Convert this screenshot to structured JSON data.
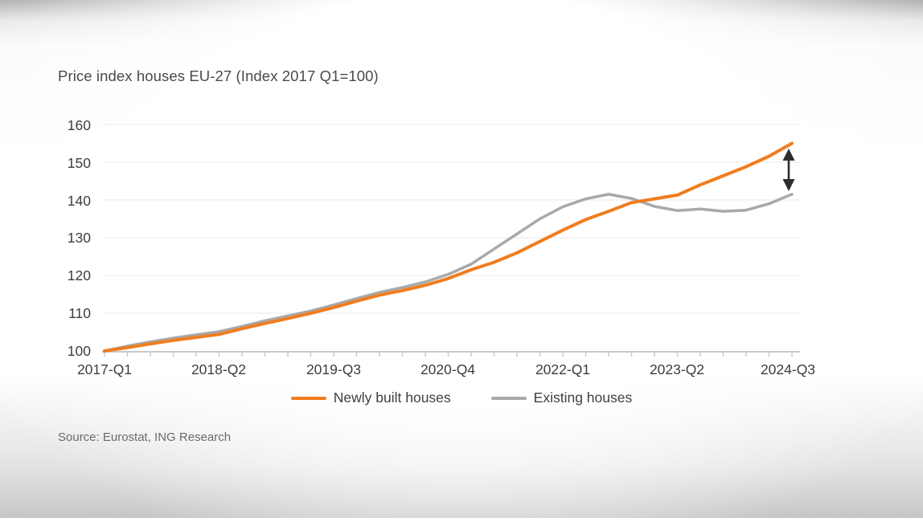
{
  "source": "Source: Eurostat, ING Research",
  "colors": {
    "newly_built": "#F07D1E",
    "existing": "#A9A9A9",
    "axis": "#C9C9C9",
    "gridline": "#F0F0F0",
    "annotation_arrow": "#2D2D2D",
    "text": "#3D3D3D"
  },
  "chart_data": {
    "type": "line",
    "title": "Price index houses EU-27 (Index 2017 Q1=100)",
    "xlabel": "",
    "ylabel": "",
    "ylim": [
      100,
      162
    ],
    "grid": "faint horizontal",
    "legend_position": "bottom",
    "x": [
      "2017-Q1",
      "2017-Q2",
      "2017-Q3",
      "2017-Q4",
      "2018-Q1",
      "2018-Q2",
      "2018-Q3",
      "2018-Q4",
      "2019-Q1",
      "2019-Q2",
      "2019-Q3",
      "2019-Q4",
      "2020-Q1",
      "2020-Q2",
      "2020-Q3",
      "2020-Q4",
      "2021-Q1",
      "2021-Q2",
      "2021-Q3",
      "2021-Q4",
      "2022-Q1",
      "2022-Q2",
      "2022-Q3",
      "2022-Q4",
      "2023-Q1",
      "2023-Q2",
      "2023-Q3",
      "2023-Q4",
      "2024-Q1",
      "2024-Q2",
      "2024-Q3"
    ],
    "x_tick_labels": [
      "2017-Q1",
      "2018-Q2",
      "2019-Q3",
      "2020-Q4",
      "2022-Q1",
      "2023-Q2",
      "2024-Q3"
    ],
    "y_ticks": [
      100,
      110,
      120,
      130,
      140,
      150,
      160
    ],
    "series": [
      {
        "name": "Newly built houses",
        "color": "#F07D1E",
        "values": [
          100,
          100.9,
          101.9,
          102.8,
          103.6,
          104.4,
          105.9,
          107.3,
          108.6,
          110.0,
          111.5,
          113.2,
          114.8,
          116.0,
          117.4,
          119.2,
          121.5,
          123.5,
          126.0,
          129.0,
          132.0,
          134.8,
          137.0,
          139.3,
          140.3,
          141.3,
          144.0,
          146.4,
          148.8,
          151.6,
          155.0
        ]
      },
      {
        "name": "Existing houses",
        "color": "#A9A9A9",
        "values": [
          100,
          101.3,
          102.4,
          103.4,
          104.3,
          105.1,
          106.5,
          108.0,
          109.3,
          110.6,
          112.2,
          113.9,
          115.5,
          116.8,
          118.3,
          120.3,
          123.0,
          127.0,
          131.0,
          135.0,
          138.2,
          140.3,
          141.5,
          140.4,
          138.3,
          137.2,
          137.6,
          137.0,
          137.3,
          139.0,
          141.5
        ]
      }
    ],
    "annotation": {
      "label": "gap between newly built and existing houses at 2024-Q3",
      "color": "#2D2D2D"
    }
  }
}
